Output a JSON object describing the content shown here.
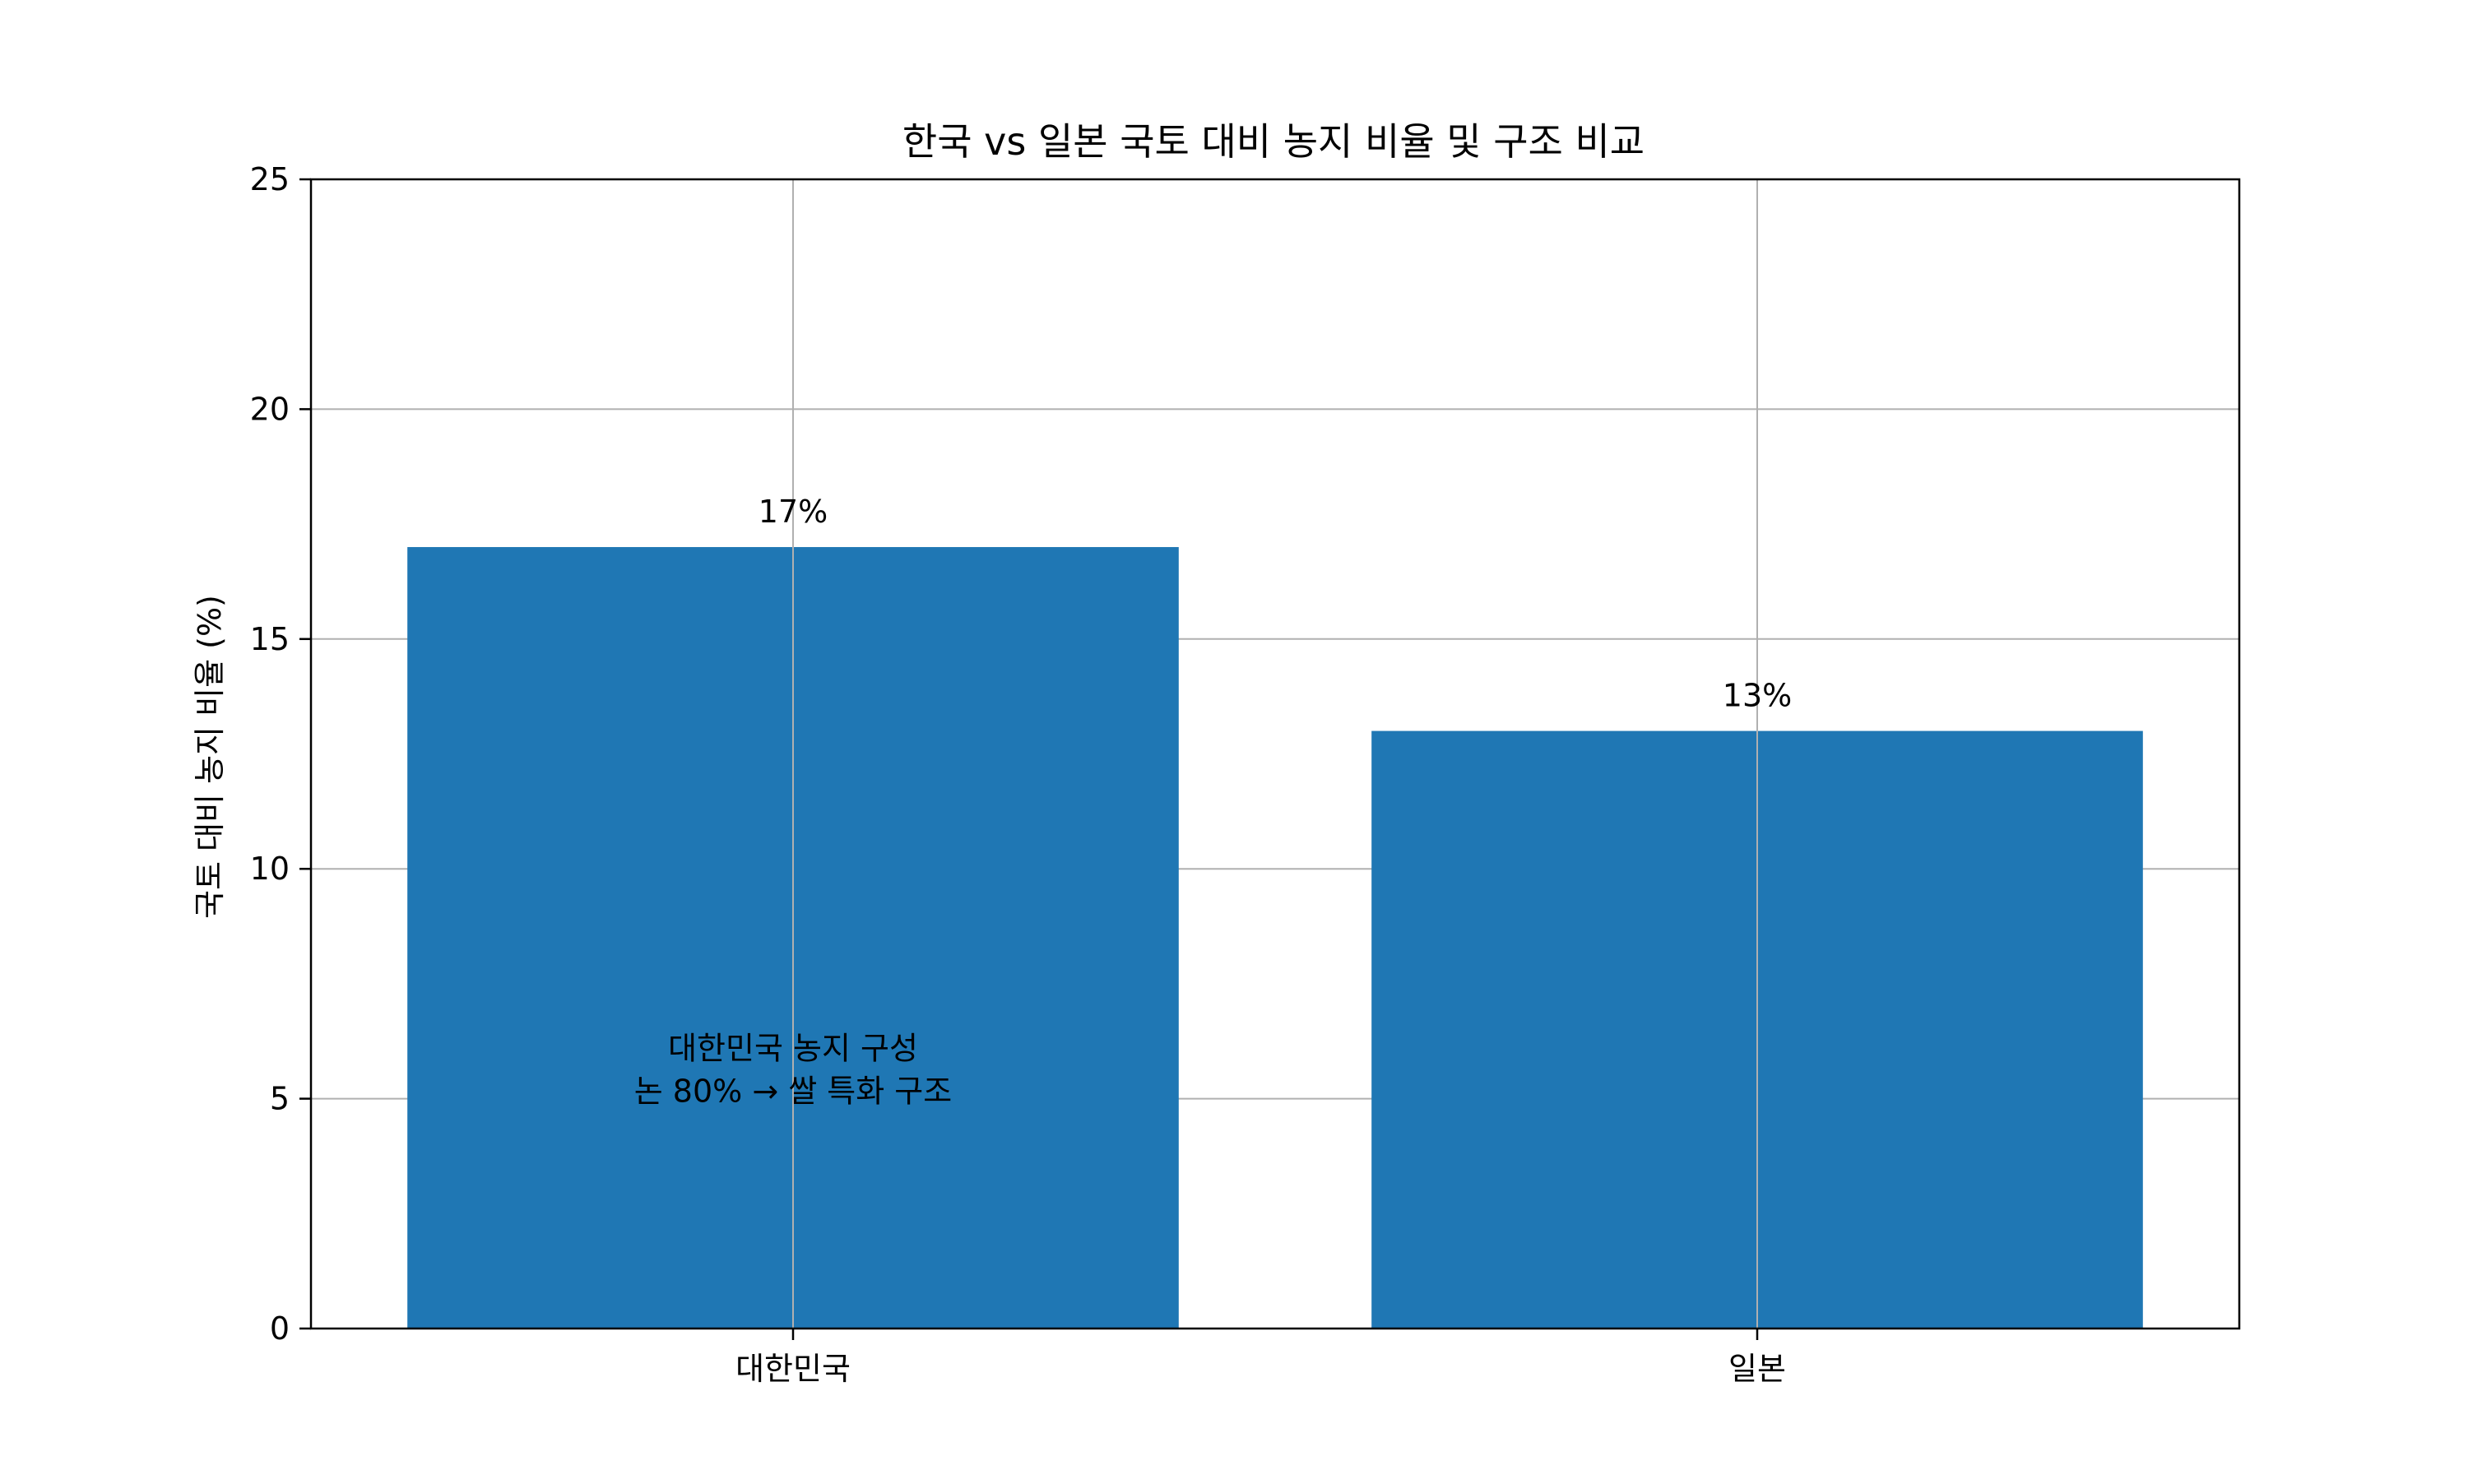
{
  "chart_data": {
    "type": "bar",
    "title": "한국 vs 일본 국토 대비 농지 비율 및 구조 비교",
    "xlabel": "",
    "ylabel": "국토 대비 농지 비율 (%)",
    "categories": [
      "대한민국",
      "일본"
    ],
    "values": [
      17,
      13
    ],
    "data_labels": [
      "17%",
      "13%"
    ],
    "ylim": [
      0,
      25
    ],
    "yticks": [
      0,
      5,
      10,
      15,
      20,
      25
    ],
    "grid": true,
    "bar_color": "#1f77b4",
    "annotation": {
      "line1": "대한민국 농지 구성",
      "line2": "논 80% → 쌀 특화 구조",
      "x_category": "대한민국",
      "y_value": 5.5
    }
  }
}
